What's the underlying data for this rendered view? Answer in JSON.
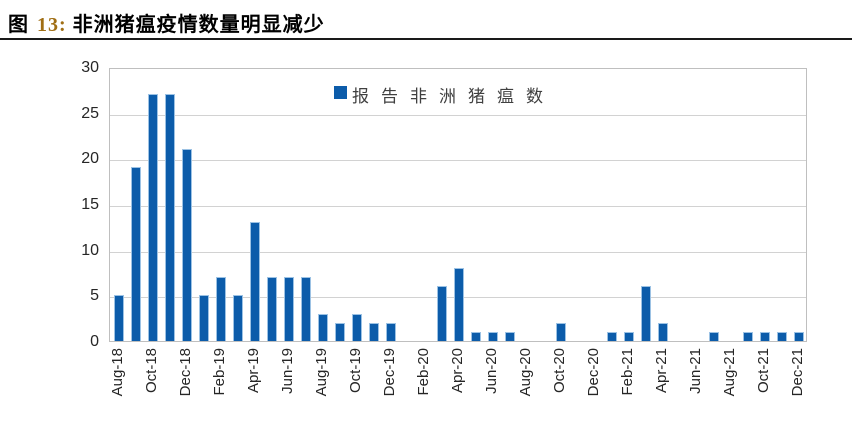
{
  "header": {
    "figure_prefix": "图",
    "figure_number": "13:",
    "figure_title": "非洲猪瘟疫情数量明显减少"
  },
  "legend": {
    "label": "报告非洲猪瘟数"
  },
  "colors": {
    "bar": "#0C5CAA",
    "bar_edge": "#9CC2E4",
    "grid": "#D2D2D2",
    "plot_border": "#BFBFBF",
    "axis_text": "#262626",
    "figure_number_accent": "#A06E14"
  },
  "chart_data": {
    "type": "bar",
    "title": "图 13: 非洲猪瘟疫情数量明显减少",
    "legend_entries": [
      "报告非洲猪瘟数"
    ],
    "legend_position": "top-center",
    "categories": [
      "Aug-18",
      "Sep-18",
      "Oct-18",
      "Nov-18",
      "Dec-18",
      "Jan-19",
      "Feb-19",
      "Mar-19",
      "Apr-19",
      "May-19",
      "Jun-19",
      "Jul-19",
      "Aug-19",
      "Sep-19",
      "Oct-19",
      "Nov-19",
      "Dec-19",
      "Jan-20",
      "Feb-20",
      "Mar-20",
      "Apr-20",
      "May-20",
      "Jun-20",
      "Jul-20",
      "Aug-20",
      "Sep-20",
      "Oct-20",
      "Nov-20",
      "Dec-20",
      "Jan-21",
      "Feb-21",
      "Mar-21",
      "Apr-21",
      "May-21",
      "Jun-21",
      "Jul-21",
      "Aug-21",
      "Sep-21",
      "Oct-21",
      "Nov-21",
      "Dec-21"
    ],
    "values": [
      5,
      19,
      27,
      27,
      21,
      5,
      7,
      5,
      13,
      7,
      7,
      7,
      3,
      2,
      3,
      2,
      2,
      0,
      0,
      6,
      8,
      1,
      1,
      1,
      0,
      0,
      2,
      0,
      0,
      1,
      1,
      6,
      2,
      0,
      0,
      1,
      0,
      1,
      1,
      1,
      1
    ],
    "xlabel": "",
    "ylabel": "",
    "ylim": [
      0,
      30
    ],
    "yticks": [
      0,
      5,
      10,
      15,
      20,
      25,
      30
    ],
    "x_tick_every": 2,
    "x_tick_rotation": -90,
    "grid": true
  }
}
